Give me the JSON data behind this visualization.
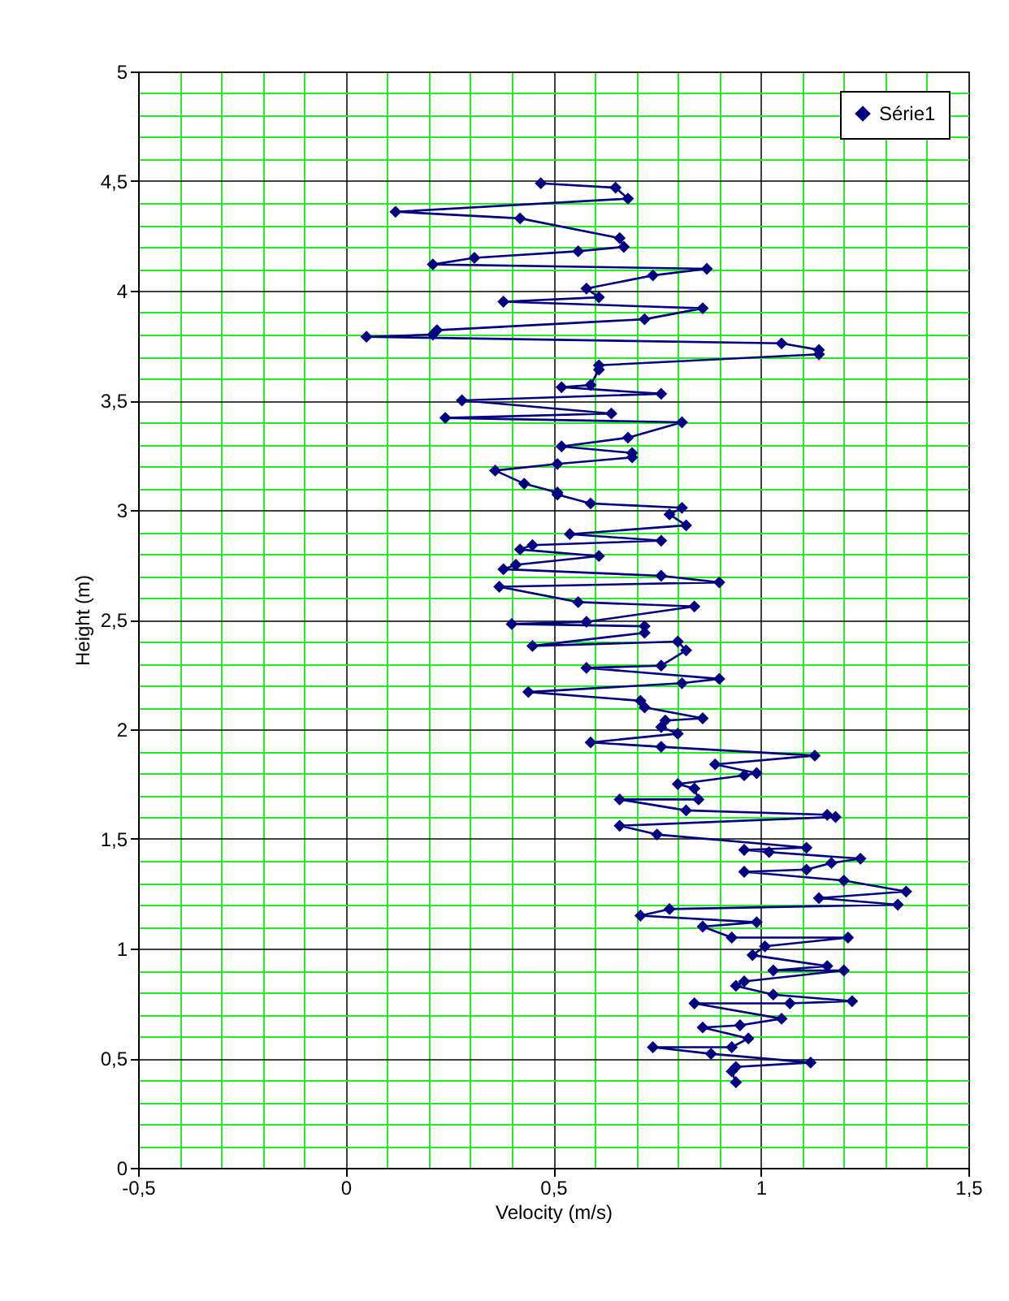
{
  "chart_data": {
    "type": "line",
    "xlabel": "Velocity (m/s)",
    "ylabel": "Height (m)",
    "xlim": [
      -0.5,
      1.5
    ],
    "xticks": [
      {
        "value": -0.5,
        "label": "-0,5"
      },
      {
        "value": -0.4,
        "label": null
      },
      {
        "value": -0.3,
        "label": null
      },
      {
        "value": -0.2,
        "label": null
      },
      {
        "value": -0.1,
        "label": null
      },
      0,
      {
        "value": 0.1,
        "label": null
      },
      {
        "value": 0.2,
        "label": null
      },
      {
        "value": 0.3,
        "label": null
      },
      {
        "value": 0.4,
        "label": null
      },
      {
        "value": 0.5,
        "label": "0,5"
      },
      {
        "value": 0.6,
        "label": null
      },
      {
        "value": 0.7,
        "label": null
      },
      {
        "value": 0.8,
        "label": null
      },
      {
        "value": 0.9,
        "label": null
      },
      1,
      {
        "value": 1.1,
        "label": null
      },
      {
        "value": 1.2,
        "label": null
      },
      {
        "value": 1.3,
        "label": null
      },
      {
        "value": 1.4,
        "label": null
      },
      {
        "value": 1.5,
        "label": "1,5"
      }
    ],
    "ylim": [
      0,
      5
    ],
    "yticks": [
      0,
      {
        "value": 0.1,
        "label": null
      },
      {
        "value": 0.2,
        "label": null
      },
      {
        "value": 0.3,
        "label": null
      },
      {
        "value": 0.4,
        "label": null
      },
      {
        "value": 0.5,
        "label": "0,5"
      },
      {
        "value": 0.6,
        "label": null
      },
      {
        "value": 0.7,
        "label": null
      },
      {
        "value": 0.8,
        "label": null
      },
      {
        "value": 0.9,
        "label": null
      },
      1,
      {
        "value": 1.1,
        "label": null
      },
      {
        "value": 1.2,
        "label": null
      },
      {
        "value": 1.3,
        "label": null
      },
      {
        "value": 1.4,
        "label": null
      },
      {
        "value": 1.5,
        "label": "1,5"
      },
      {
        "value": 1.6,
        "label": null
      },
      {
        "value": 1.7,
        "label": null
      },
      {
        "value": 1.8,
        "label": null
      },
      {
        "value": 1.9,
        "label": null
      },
      2,
      {
        "value": 2.1,
        "label": null
      },
      {
        "value": 2.2,
        "label": null
      },
      {
        "value": 2.3,
        "label": null
      },
      {
        "value": 2.4,
        "label": null
      },
      {
        "value": 2.5,
        "label": "2,5"
      },
      {
        "value": 2.6,
        "label": null
      },
      {
        "value": 2.7,
        "label": null
      },
      {
        "value": 2.8,
        "label": null
      },
      {
        "value": 2.9,
        "label": null
      },
      3,
      {
        "value": 3.1,
        "label": null
      },
      {
        "value": 3.2,
        "label": null
      },
      {
        "value": 3.3,
        "label": null
      },
      {
        "value": 3.4,
        "label": null
      },
      {
        "value": 3.5,
        "label": "3,5"
      },
      {
        "value": 3.6,
        "label": null
      },
      {
        "value": 3.7,
        "label": null
      },
      {
        "value": 3.8,
        "label": null
      },
      {
        "value": 3.9,
        "label": null
      },
      4,
      {
        "value": 4.1,
        "label": null
      },
      {
        "value": 4.2,
        "label": null
      },
      {
        "value": 4.3,
        "label": null
      },
      {
        "value": 4.4,
        "label": null
      },
      {
        "value": 4.5,
        "label": "4,5"
      },
      {
        "value": 4.6,
        "label": null
      },
      {
        "value": 4.7,
        "label": null
      },
      {
        "value": 4.8,
        "label": null
      },
      {
        "value": 4.9,
        "label": null
      },
      5
    ],
    "grid": true,
    "legend": "top right",
    "marker": "diamond",
    "line_style": "solid",
    "series": [
      {
        "name": "Série1",
        "color": "#000080",
        "x": [
          0.47,
          0.65,
          0.68,
          0.12,
          0.42,
          0.66,
          0.67,
          0.56,
          0.31,
          0.21,
          0.87,
          0.74,
          0.58,
          0.61,
          0.38,
          0.86,
          0.72,
          0.22,
          0.21,
          0.05,
          1.05,
          1.14,
          1.14,
          0.61,
          0.61,
          0.59,
          0.52,
          0.76,
          0.28,
          0.64,
          0.24,
          0.81,
          0.68,
          0.52,
          0.69,
          0.69,
          0.51,
          0.36,
          0.43,
          0.51,
          0.51,
          0.59,
          0.81,
          0.78,
          0.82,
          0.54,
          0.76,
          0.45,
          0.42,
          0.61,
          0.41,
          0.38,
          0.76,
          0.9,
          0.37,
          0.56,
          0.84,
          0.58,
          0.4,
          0.72,
          0.72,
          0.45,
          0.8,
          0.82,
          0.76,
          0.58,
          0.9,
          0.81,
          0.44,
          0.71,
          0.72,
          0.86,
          0.77,
          0.76,
          0.8,
          0.59,
          0.76,
          1.13,
          0.89,
          0.99,
          0.96,
          0.8,
          0.84,
          0.85,
          0.66,
          0.82,
          1.16,
          1.18,
          0.66,
          0.75,
          1.11,
          0.96,
          1.02,
          1.24,
          1.17,
          1.11,
          0.96,
          1.2,
          1.35,
          1.14,
          1.33,
          0.78,
          0.71,
          0.99,
          0.86,
          0.93,
          1.21,
          1.01,
          0.98,
          1.16,
          1.03,
          1.2,
          0.96,
          0.94,
          1.03,
          1.22,
          1.07,
          0.84,
          1.05,
          0.95,
          0.86,
          0.97,
          0.93,
          0.74,
          0.88,
          1.12,
          0.94,
          0.93,
          0.94
        ],
        "values": [
          4.49,
          4.47,
          4.42,
          4.36,
          4.33,
          4.24,
          4.2,
          4.18,
          4.15,
          4.12,
          4.1,
          4.07,
          4.01,
          3.97,
          3.95,
          3.92,
          3.87,
          3.82,
          3.8,
          3.79,
          3.76,
          3.73,
          3.71,
          3.66,
          3.64,
          3.57,
          3.56,
          3.53,
          3.5,
          3.44,
          3.42,
          3.4,
          3.33,
          3.29,
          3.26,
          3.24,
          3.21,
          3.18,
          3.12,
          3.08,
          3.07,
          3.03,
          3.01,
          2.98,
          2.93,
          2.89,
          2.86,
          2.84,
          2.82,
          2.79,
          2.75,
          2.73,
          2.7,
          2.67,
          2.65,
          2.58,
          2.56,
          2.49,
          2.48,
          2.47,
          2.44,
          2.38,
          2.4,
          2.36,
          2.29,
          2.28,
          2.23,
          2.21,
          2.17,
          2.13,
          2.1,
          2.05,
          2.04,
          2.01,
          1.98,
          1.94,
          1.92,
          1.88,
          1.84,
          1.8,
          1.79,
          1.75,
          1.73,
          1.68,
          1.68,
          1.63,
          1.61,
          1.6,
          1.56,
          1.52,
          1.46,
          1.45,
          1.44,
          1.41,
          1.39,
          1.36,
          1.35,
          1.31,
          1.26,
          1.23,
          1.2,
          1.18,
          1.15,
          1.12,
          1.1,
          1.05,
          1.05,
          1.01,
          0.97,
          0.92,
          0.9,
          0.9,
          0.85,
          0.83,
          0.79,
          0.76,
          0.75,
          0.75,
          0.68,
          0.65,
          0.64,
          0.59,
          0.55,
          0.55,
          0.52,
          0.48,
          0.46,
          0.44,
          0.39
        ]
      }
    ]
  }
}
